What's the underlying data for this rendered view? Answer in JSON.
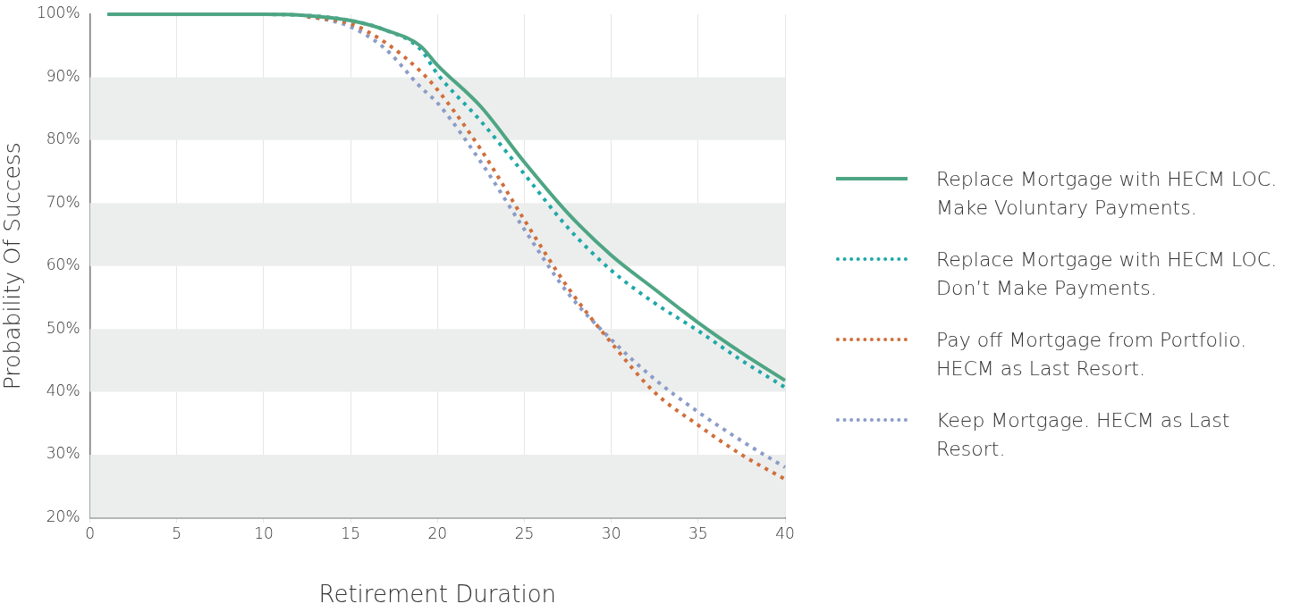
{
  "chart_data": {
    "type": "line",
    "xlabel": "Retirement Duration",
    "ylabel": "Probability Of Success",
    "xlim": [
      0,
      40
    ],
    "xticks": [
      0,
      5,
      10,
      15,
      20,
      25,
      30,
      35,
      40
    ],
    "ylim": [
      20,
      100
    ],
    "yticks": [
      {
        "value": 20,
        "label": "20%"
      },
      {
        "value": 30,
        "label": "30%"
      },
      {
        "value": 40,
        "label": "40%"
      },
      {
        "value": 50,
        "label": "50%"
      },
      {
        "value": 60,
        "label": "60%"
      },
      {
        "value": 70,
        "label": "70%"
      },
      {
        "value": 80,
        "label": "80%"
      },
      {
        "value": 90,
        "label": "90%"
      },
      {
        "value": 100,
        "label": "100%"
      }
    ],
    "grid": "x",
    "legend": "right",
    "marker": "none",
    "bands": [
      {
        "axis": "y",
        "from": 20,
        "to": 30,
        "color": "#eceeed"
      },
      {
        "axis": "y",
        "from": 40,
        "to": 50,
        "color": "#eceeed"
      },
      {
        "axis": "y",
        "from": 60,
        "to": 70,
        "color": "#eceeed"
      },
      {
        "axis": "y",
        "from": 80,
        "to": 90,
        "color": "#eceeed"
      }
    ],
    "x": [
      1,
      5,
      7,
      10,
      12.5,
      15,
      17,
      19,
      20,
      22.5,
      25,
      27.5,
      30,
      32.5,
      35,
      37.5,
      40
    ],
    "series": [
      {
        "name": "Replace Mortgage with HECM LOC. Make Voluntary Payments.",
        "color": "#4ea584",
        "line_style": "solid",
        "values": [
          100,
          100,
          100,
          100,
          99.8,
          99,
          97.5,
          95,
          91.9,
          85.3,
          76.5,
          68.4,
          61.7,
          56.3,
          51,
          46.2,
          41.8
        ]
      },
      {
        "name": "Replace Mortgage with HECM LOC. Don’t Make Payments.",
        "color": "#1fa8a8",
        "line_style": "dotted",
        "values": [
          null,
          null,
          null,
          100,
          99.8,
          99,
          97.5,
          94.5,
          90.5,
          83,
          74.6,
          66.1,
          59.3,
          54.1,
          49.7,
          45,
          40.7
        ]
      },
      {
        "name": "Pay off Mortgage from Portfolio. HECM as Last Resort.",
        "color": "#d06e3a",
        "line_style": "dotted",
        "values": [
          null,
          null,
          null,
          null,
          99.6,
          98.5,
          95.5,
          91,
          88,
          78.5,
          67.3,
          56.6,
          47.8,
          39.9,
          34.7,
          30,
          26.1
        ]
      },
      {
        "name": "Keep Mortgage. HECM as Last Resort.",
        "color": "#8b9cc8",
        "line_style": "dotted",
        "values": [
          null,
          null,
          null,
          null,
          99.8,
          98,
          94.5,
          88.5,
          85.9,
          76.5,
          65.8,
          55.7,
          48.3,
          42,
          36.8,
          32.2,
          28
        ]
      }
    ]
  }
}
